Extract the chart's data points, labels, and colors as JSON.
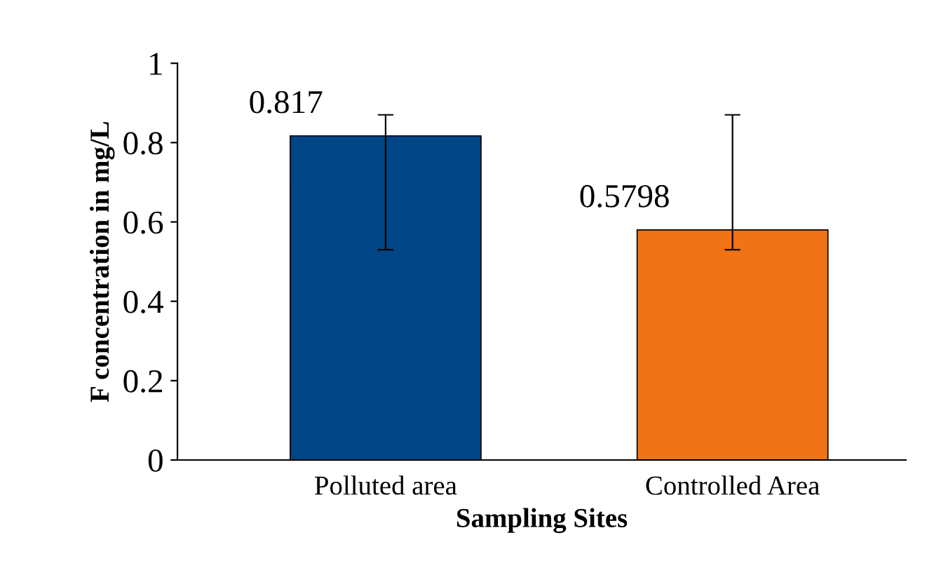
{
  "chart_data": {
    "type": "bar",
    "xlabel": "Sampling Sites",
    "ylabel": "F concentration in mg/L",
    "categories": [
      "Polluted area",
      "Controlled Area"
    ],
    "values": [
      0.817,
      0.5798
    ],
    "colors": [
      "#004586",
      "#f07316"
    ],
    "errors": [
      [
        0.53,
        0.87
      ],
      [
        0.53,
        0.87
      ]
    ],
    "data_labels": true,
    "ylim": [
      0,
      1
    ],
    "yticks": [
      0,
      0.2,
      0.4,
      0.6,
      0.8,
      1
    ],
    "grid": false
  }
}
